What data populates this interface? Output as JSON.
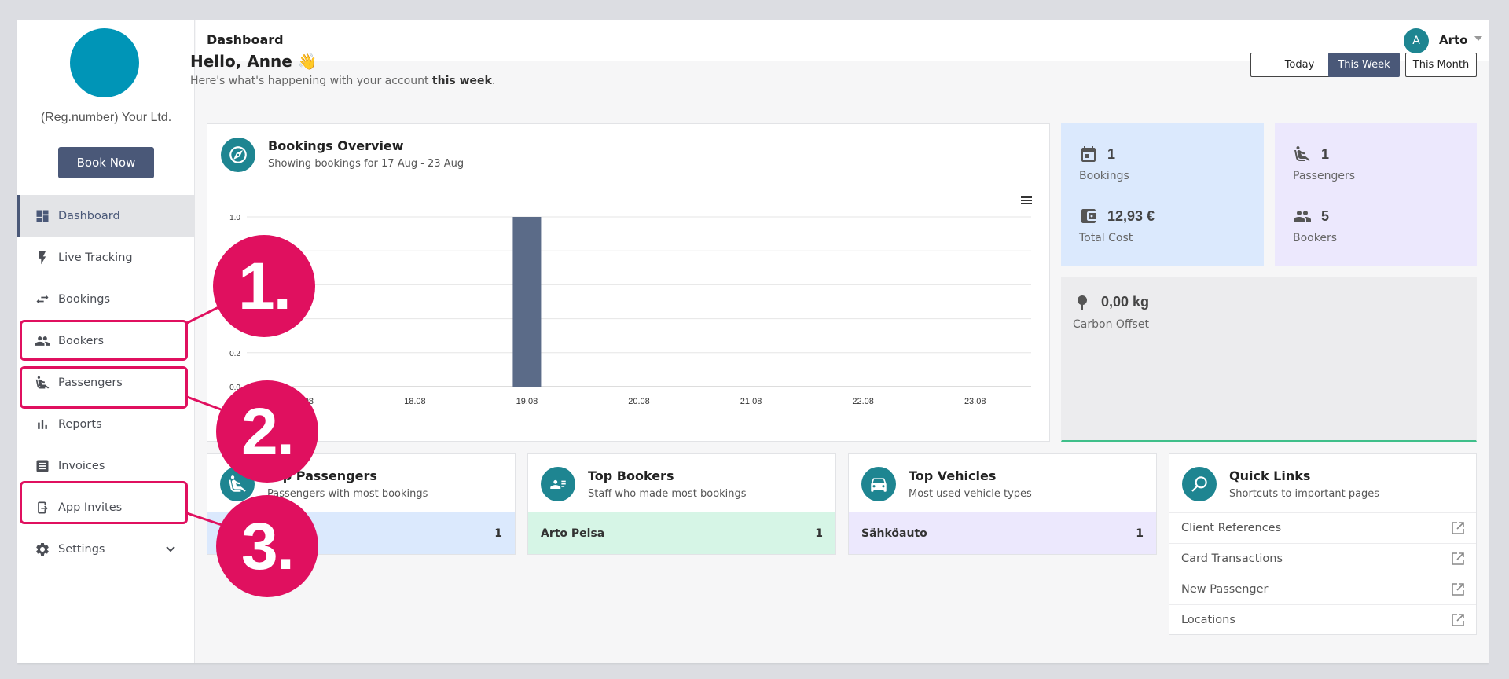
{
  "sidebar": {
    "company": "(Reg.number) Your Ltd.",
    "book_now": "Book Now",
    "items": [
      {
        "label": "Dashboard",
        "icon": "dashboard-icon",
        "active": true
      },
      {
        "label": "Live Tracking",
        "icon": "bolt-icon"
      },
      {
        "label": "Bookings",
        "icon": "swap-arrows-icon"
      },
      {
        "label": "Bookers",
        "icon": "people-icon"
      },
      {
        "label": "Passengers",
        "icon": "seat-person-icon"
      },
      {
        "label": "Reports",
        "icon": "bar-chart-icon"
      },
      {
        "label": "Invoices",
        "icon": "list-document-icon"
      },
      {
        "label": "App Invites",
        "icon": "app-invite-icon"
      },
      {
        "label": "Settings",
        "icon": "gear-icon"
      }
    ]
  },
  "header": {
    "title": "Dashboard",
    "avatar_initial": "A",
    "user_name": "Arto"
  },
  "greeting": {
    "title": "Hello, Anne 👋",
    "sub_prefix": "Here's what's happening with your account ",
    "sub_bold": "this week",
    "sub_suffix": "."
  },
  "period_buttons": [
    "Today",
    "This Week",
    "This Month"
  ],
  "active_period": "This Week",
  "bookings_overview": {
    "title": "Bookings Overview",
    "subtitle": "Showing bookings for 17 Aug - 23 Aug"
  },
  "chart_data": {
    "type": "bar",
    "categories": [
      "17.08",
      "18.08",
      "19.08",
      "20.08",
      "21.08",
      "22.08",
      "23.08"
    ],
    "values": [
      0,
      0,
      1,
      0,
      0,
      0,
      0
    ],
    "ylim": [
      0,
      1.0
    ],
    "yticks": [
      0,
      0.2,
      1.0
    ],
    "ytick_labels": [
      "0.0",
      "0.2",
      "1.0"
    ],
    "grid": true,
    "color": "#5b6b88"
  },
  "stats": {
    "bookings": {
      "value": "1",
      "label": "Bookings"
    },
    "total_cost": {
      "value": "12,93 €",
      "label": "Total Cost"
    },
    "passengers": {
      "value": "1",
      "label": "Passengers"
    },
    "bookers": {
      "value": "5",
      "label": "Bookers"
    },
    "carbon": {
      "value": "0,00 kg",
      "label": "Carbon Offset"
    }
  },
  "top_passengers": {
    "title": "Top Passengers",
    "subtitle": "Passengers with most bookings",
    "rows": [
      {
        "name": "",
        "count": "1"
      }
    ]
  },
  "top_bookers": {
    "title": "Top Bookers",
    "subtitle": "Staff who made most bookings",
    "rows": [
      {
        "name": "Arto Peisa",
        "count": "1"
      }
    ]
  },
  "top_vehicles": {
    "title": "Top Vehicles",
    "subtitle": "Most used vehicle types",
    "rows": [
      {
        "name": "Sähköauto",
        "count": "1"
      }
    ]
  },
  "quick_links": {
    "title": "Quick Links",
    "subtitle": "Shortcuts to important pages",
    "items": [
      "Client References",
      "Card Transactions",
      "New Passenger",
      "Locations"
    ]
  },
  "callouts": [
    "1.",
    "2.",
    "3."
  ],
  "colors": {
    "accent": "#4a5878",
    "teal": "#1e8591",
    "logo": "#0095b7",
    "callout": "#e0105f",
    "blue_card": "#dbe9fd",
    "purple_card": "#ece8fd",
    "gray_card": "#ececee",
    "green_row": "#d6f5e6"
  }
}
